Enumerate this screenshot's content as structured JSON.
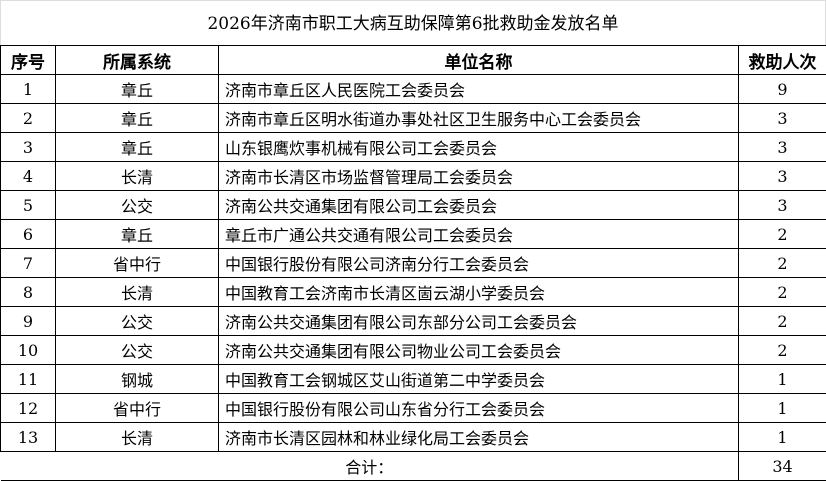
{
  "title": "2026年济南市职工大病互助保障第6批救助金发放名单",
  "headers": {
    "index": "序号",
    "system": "所属系统",
    "unit": "单位名称",
    "count": "救助人次"
  },
  "rows": [
    {
      "index": "1",
      "system": "章丘",
      "unit": "济南市章丘区人民医院工会委员会",
      "count": "9"
    },
    {
      "index": "2",
      "system": "章丘",
      "unit": "济南市章丘区明水街道办事处社区卫生服务中心工会委员会",
      "count": "3"
    },
    {
      "index": "3",
      "system": "章丘",
      "unit": "山东银鹰炊事机械有限公司工会委员会",
      "count": "3"
    },
    {
      "index": "4",
      "system": "长清",
      "unit": "济南市长清区市场监督管理局工会委员会",
      "count": "3"
    },
    {
      "index": "5",
      "system": "公交",
      "unit": "济南公共交通集团有限公司工会委员会",
      "count": "3"
    },
    {
      "index": "6",
      "system": "章丘",
      "unit": "章丘市广通公共交通有限公司工会委员会",
      "count": "2"
    },
    {
      "index": "7",
      "system": "省中行",
      "unit": "中国银行股份有限公司济南分行工会委员会",
      "count": "2"
    },
    {
      "index": "8",
      "system": "长清",
      "unit": "中国教育工会济南市长清区崮云湖小学委员会",
      "count": "2"
    },
    {
      "index": "9",
      "system": "公交",
      "unit": "济南公共交通集团有限公司东部分公司工会委员会",
      "count": "2"
    },
    {
      "index": "10",
      "system": "公交",
      "unit": "济南公共交通集团有限公司物业公司工会委员会",
      "count": "2"
    },
    {
      "index": "11",
      "system": "钢城",
      "unit": "中国教育工会钢城区艾山街道第二中学委员会",
      "count": "1"
    },
    {
      "index": "12",
      "system": "省中行",
      "unit": "中国银行股份有限公司山东省分行工会委员会",
      "count": "1"
    },
    {
      "index": "13",
      "system": "长清",
      "unit": "济南市长清区园林和林业绿化局工会委员会",
      "count": "1"
    }
  ],
  "total": {
    "label": "合计：",
    "count": "34"
  }
}
